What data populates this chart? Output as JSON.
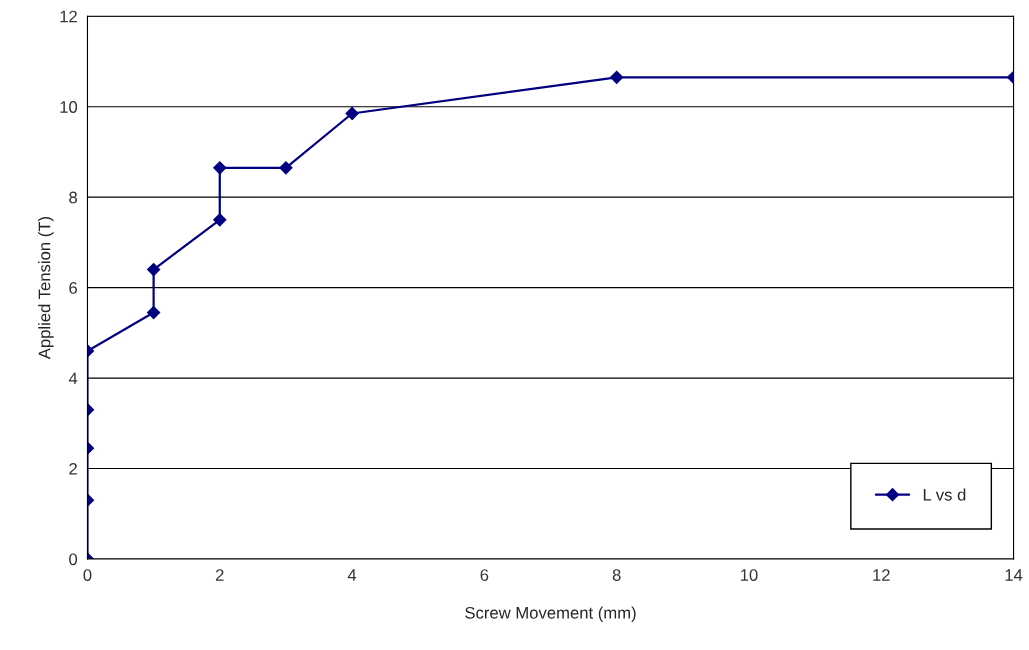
{
  "chart_data": {
    "type": "line",
    "xlabel": "Screw Movement (mm)",
    "ylabel": "Applied Tension (T)",
    "series": [
      {
        "name": "L vs d",
        "color": "#000080",
        "x": [
          0,
          0,
          0,
          0,
          0,
          1,
          1,
          2,
          2,
          3,
          4,
          8,
          14
        ],
        "values": [
          0,
          1.3,
          2.45,
          3.3,
          4.6,
          5.45,
          6.4,
          7.5,
          8.65,
          8.65,
          9.85,
          10.65,
          10.65
        ]
      }
    ],
    "xlim": [
      0,
      14
    ],
    "xticks": [
      0,
      2,
      4,
      6,
      8,
      10,
      12,
      14
    ],
    "ylim": [
      0,
      12
    ],
    "yticks": [
      0,
      2,
      4,
      6,
      8,
      10,
      12
    ],
    "grid": "y",
    "legend": "bottom right",
    "marker": "diamond",
    "line_style": "solid"
  }
}
